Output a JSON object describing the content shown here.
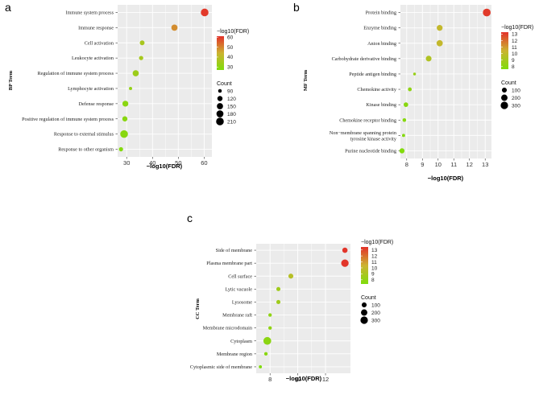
{
  "chart_data": [
    {
      "panel": "a",
      "type": "scatter",
      "ylabel": "BP Term",
      "xlabel": "−log10(FDR)",
      "xlim": [
        26.5,
        63
      ],
      "xticks": [
        30,
        40,
        50,
        60
      ],
      "terms": [
        {
          "label": "Immune system process",
          "x": 60.2,
          "count": 210,
          "fdr": 60
        },
        {
          "label": "Immune response",
          "x": 48.5,
          "count": 150,
          "fdr": 49
        },
        {
          "label": "Cell activation",
          "x": 36.0,
          "count": 110,
          "fdr": 36
        },
        {
          "label": "Leukocyte activation",
          "x": 35.6,
          "count": 100,
          "fdr": 35.5
        },
        {
          "label": "Regulation of immune system process",
          "x": 33.5,
          "count": 150,
          "fdr": 33.5
        },
        {
          "label": "Lymphocyte activation",
          "x": 31.5,
          "count": 85,
          "fdr": 31.5
        },
        {
          "label": "Defense response",
          "x": 29.5,
          "count": 140,
          "fdr": 29.5
        },
        {
          "label": "Positive regulation of immune system process",
          "x": 29.3,
          "count": 120,
          "fdr": 29.3
        },
        {
          "label": "Response to external stimulus",
          "x": 29.0,
          "count": 210,
          "fdr": 29
        },
        {
          "label": "Response to other organism",
          "x": 27.8,
          "count": 100,
          "fdr": 28
        }
      ],
      "color_legend": {
        "title": "−log10(FDR)",
        "min": 27,
        "max": 61,
        "ticks": [
          "60",
          "50",
          "40",
          "30"
        ],
        "tick_values": [
          60,
          50,
          40,
          30
        ]
      },
      "size_legend": {
        "title": "Count",
        "labels": [
          "90",
          "120",
          "150",
          "180",
          "210"
        ],
        "values": [
          90,
          120,
          150,
          180,
          210
        ],
        "min": 80,
        "max": 220
      }
    },
    {
      "panel": "b",
      "type": "scatter",
      "ylabel": "MF Term",
      "xlabel": "−log10(FDR)",
      "xlim": [
        7.6,
        13.4
      ],
      "xticks": [
        8,
        9,
        10,
        11,
        12,
        13
      ],
      "terms": [
        {
          "label": "Protein binding",
          "x": 13.1,
          "count": 340,
          "fdr": 13.1
        },
        {
          "label": "Enzyme binding",
          "x": 10.1,
          "count": 160,
          "fdr": 10.1
        },
        {
          "label": "Anion binding",
          "x": 10.1,
          "count": 190,
          "fdr": 10.1
        },
        {
          "label": "Carbohydrate derivative binding",
          "x": 9.4,
          "count": 150,
          "fdr": 9.4
        },
        {
          "label": "Peptide antigen binding",
          "x": 8.5,
          "count": 25,
          "fdr": 8.5
        },
        {
          "label": "Chemokine activity",
          "x": 8.2,
          "count": 50,
          "fdr": 8.2
        },
        {
          "label": "Kinase binding",
          "x": 7.95,
          "count": 80,
          "fdr": 7.95
        },
        {
          "label": "Chemokine receptor binding",
          "x": 7.85,
          "count": 45,
          "fdr": 7.85
        },
        {
          "label": "Non−membrane spanning protein tyrosine kinase activity",
          "x": 7.8,
          "count": 30,
          "fdr": 7.8
        },
        {
          "label": "Purine nucleotide binding",
          "x": 7.7,
          "count": 110,
          "fdr": 7.7
        }
      ],
      "color_legend": {
        "title": "−log10(FDR)",
        "min": 7.6,
        "max": 13.3,
        "ticks": [
          "13",
          "12",
          "11",
          "10",
          "9",
          "8"
        ],
        "tick_values": [
          13,
          12,
          11,
          10,
          9,
          8
        ]
      },
      "size_legend": {
        "title": "Count",
        "labels": [
          "100",
          "200",
          "300"
        ],
        "values": [
          100,
          200,
          300
        ],
        "min": 20,
        "max": 350
      }
    },
    {
      "panel": "c",
      "type": "scatter",
      "ylabel": "CC Term",
      "xlabel": "−log10(FDR)",
      "xlim": [
        7.0,
        13.8
      ],
      "xticks": [
        8,
        10,
        12
      ],
      "terms": [
        {
          "label": "Side of membrane",
          "x": 13.4,
          "count": 120,
          "fdr": 13.4
        },
        {
          "label": "Plasma membrane part",
          "x": 13.4,
          "count": 300,
          "fdr": 13.4
        },
        {
          "label": "Cell surface",
          "x": 9.5,
          "count": 100,
          "fdr": 9.5
        },
        {
          "label": "Lytic vacuole",
          "x": 8.6,
          "count": 60,
          "fdr": 8.6
        },
        {
          "label": "Lysosome",
          "x": 8.6,
          "count": 60,
          "fdr": 8.6
        },
        {
          "label": "Membrane raft",
          "x": 8.0,
          "count": 40,
          "fdr": 8.0
        },
        {
          "label": "Membrane microdomain",
          "x": 8.0,
          "count": 40,
          "fdr": 8.0
        },
        {
          "label": "Cytoplasm",
          "x": 7.8,
          "count": 340,
          "fdr": 7.8
        },
        {
          "label": "Membrane region",
          "x": 7.7,
          "count": 40,
          "fdr": 7.7
        },
        {
          "label": "Cytoplasmic side of membrane",
          "x": 7.3,
          "count": 30,
          "fdr": 7.3
        }
      ],
      "color_legend": {
        "title": "−log10(FDR)",
        "min": 7.3,
        "max": 13.5,
        "ticks": [
          "13",
          "12",
          "11",
          "10",
          "9",
          "8"
        ],
        "tick_values": [
          13,
          12,
          11,
          10,
          9,
          8
        ]
      },
      "size_legend": {
        "title": "Count",
        "labels": [
          "100",
          "200",
          "300"
        ],
        "values": [
          100,
          200,
          300
        ],
        "min": 20,
        "max": 350
      }
    }
  ],
  "colors": {
    "panel_bg": "#ebebeb",
    "grid": "#ffffff",
    "low": "#7fdc0b",
    "mid": "#ccb331",
    "high": "#e3312a"
  }
}
